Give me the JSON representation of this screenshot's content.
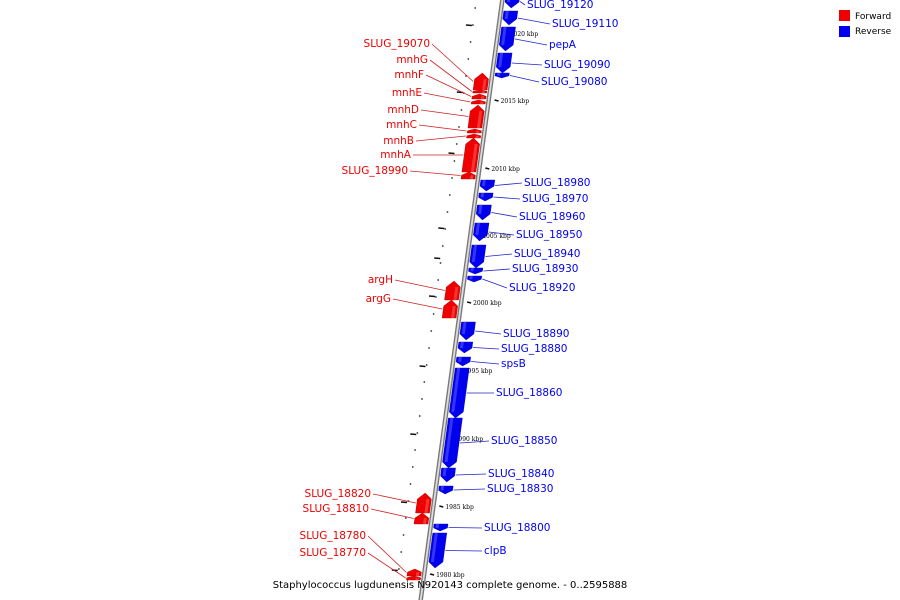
{
  "caption": "Staphylococcus lugdunensis N920143 complete genome. - 0..2595888",
  "legend": [
    {
      "label": "Forward",
      "color": "#ee0000"
    },
    {
      "label": "Reverse",
      "color": "#0000ee"
    }
  ],
  "colors": {
    "forward": "#ee0000",
    "reverse": "#0000ee",
    "backbone": "#999999"
  },
  "ticks": [
    {
      "label": "2020 kbp",
      "kbp": 2020
    },
    {
      "label": "2015 kbp",
      "kbp": 2015
    },
    {
      "label": "2010 kbp",
      "kbp": 2010
    },
    {
      "label": "2005 kbp",
      "kbp": 2005
    },
    {
      "label": "2000 kbp",
      "kbp": 2000
    },
    {
      "label": "1995 kbp",
      "kbp": 1995
    },
    {
      "label": "1990 kbp",
      "kbp": 1990
    },
    {
      "label": "1985 kbp",
      "kbp": 1985
    },
    {
      "label": "1980 kbp",
      "kbp": 1980
    }
  ],
  "reverse_genes": [
    "SLUG_19120",
    "SLUG_19110",
    "pepA",
    "SLUG_19090",
    "SLUG_19080",
    "SLUG_18980",
    "SLUG_18970",
    "SLUG_18960",
    "SLUG_18950",
    "SLUG_18940",
    "SLUG_18930",
    "SLUG_18920",
    "SLUG_18890",
    "SLUG_18880",
    "spsB",
    "SLUG_18860",
    "SLUG_18850",
    "SLUG_18840",
    "SLUG_18830",
    "SLUG_18800",
    "clpB"
  ],
  "forward_genes": [
    "SLUG_19070",
    "mnhG",
    "mnhF",
    "mnhE",
    "mnhD",
    "mnhC",
    "mnhB",
    "mnhA",
    "SLUG_18990",
    "argH",
    "argG",
    "SLUG_18820",
    "SLUG_18810",
    "SLUG_18780",
    "SLUG_18770"
  ]
}
